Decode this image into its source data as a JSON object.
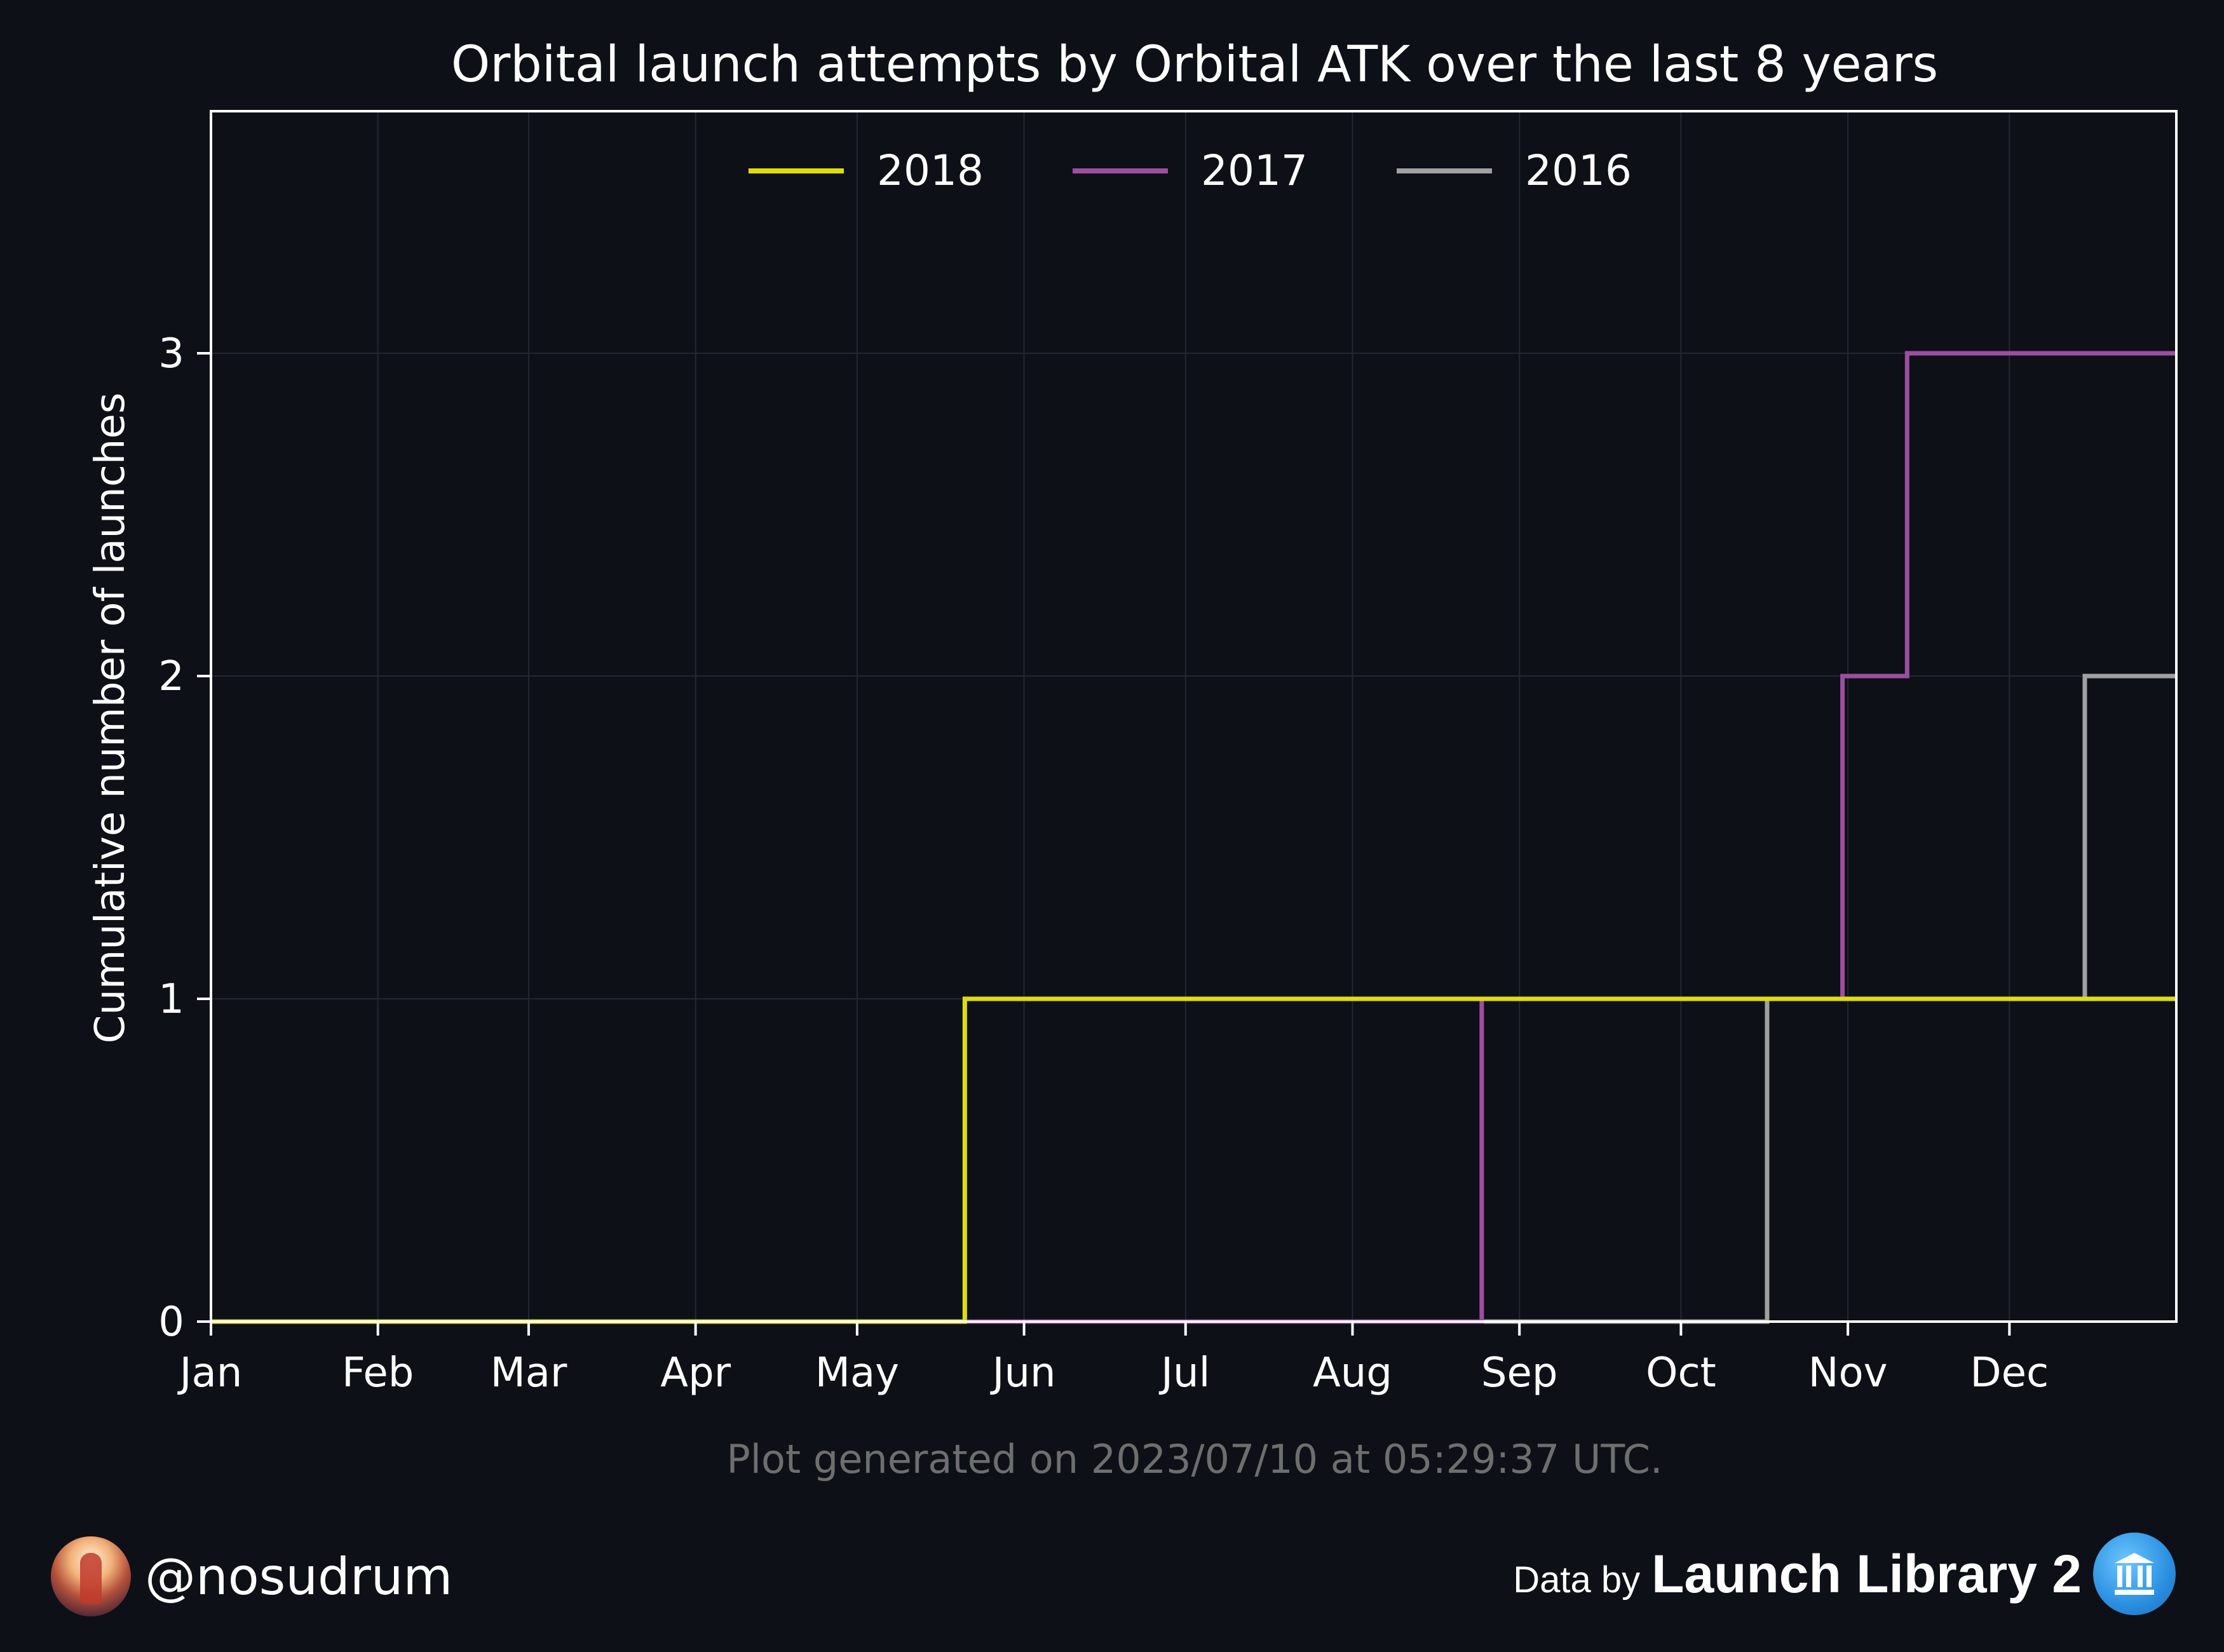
{
  "footer": {
    "handle": "@nosudrum",
    "data_by": "Data by",
    "source": "Launch Library 2",
    "avatar_icon": "astronaut-avatar-icon",
    "source_icon": "launch-library-icon"
  },
  "chart_data": {
    "type": "line",
    "step": true,
    "title": "Orbital launch attempts by Orbital ATK over the last 8 years",
    "xlabel": "",
    "ylabel": "Cumulative number of launches",
    "x_tick_labels": [
      "Jan",
      "Feb",
      "Mar",
      "Apr",
      "May",
      "Jun",
      "Jul",
      "Aug",
      "Sep",
      "Oct",
      "Nov",
      "Dec"
    ],
    "xlim": [
      "Jan 1",
      "Dec 31"
    ],
    "y_ticks": [
      0,
      1,
      2,
      3
    ],
    "ylim": [
      0,
      3.75
    ],
    "grid": true,
    "legend_position": "top-center",
    "series": [
      {
        "name": "2018",
        "color": "#e0dc0c",
        "points": [
          [
            "Jan 1",
            0
          ],
          [
            "May 21",
            1
          ],
          [
            "Dec 31",
            1
          ]
        ]
      },
      {
        "name": "2017",
        "color": "#9b4f9f",
        "points": [
          [
            "Jan 1",
            0
          ],
          [
            "Aug 25",
            1
          ],
          [
            "Oct 31",
            2
          ],
          [
            "Nov 12",
            3
          ],
          [
            "Dec 31",
            3
          ]
        ]
      },
      {
        "name": "2016",
        "color": "#a0a0a0",
        "points": [
          [
            "Jan 1",
            0
          ],
          [
            "Oct 17",
            1
          ],
          [
            "Dec 15",
            2
          ],
          [
            "Dec 31",
            2
          ]
        ]
      }
    ],
    "annotation": "Plot generated on 2023/07/10 at 05:29:37 UTC."
  }
}
